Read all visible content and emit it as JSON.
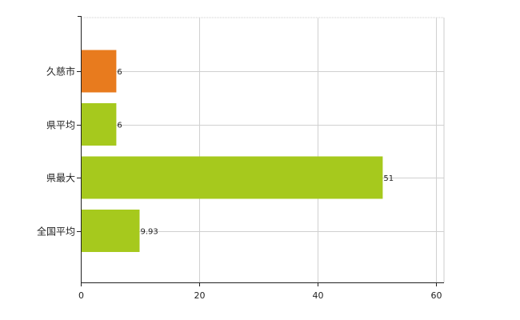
{
  "chart_data": {
    "type": "bar",
    "orientation": "horizontal",
    "categories": [
      "久慈市",
      "県平均",
      "県最大",
      "全国平均"
    ],
    "values": [
      6,
      6,
      51,
      9.93
    ],
    "value_labels": [
      "6",
      "6",
      "51",
      "9.93"
    ],
    "bar_colors": [
      "#e87b1e",
      "#a6c91d",
      "#a6c91d",
      "#a6c91d"
    ],
    "xlim": [
      0,
      60
    ],
    "x_ticks": [
      0,
      20,
      40,
      60
    ],
    "x_tick_labels": [
      "0",
      "20",
      "40",
      "60"
    ],
    "grid": true,
    "legend": "none",
    "title": "",
    "xlabel": "",
    "ylabel": ""
  }
}
